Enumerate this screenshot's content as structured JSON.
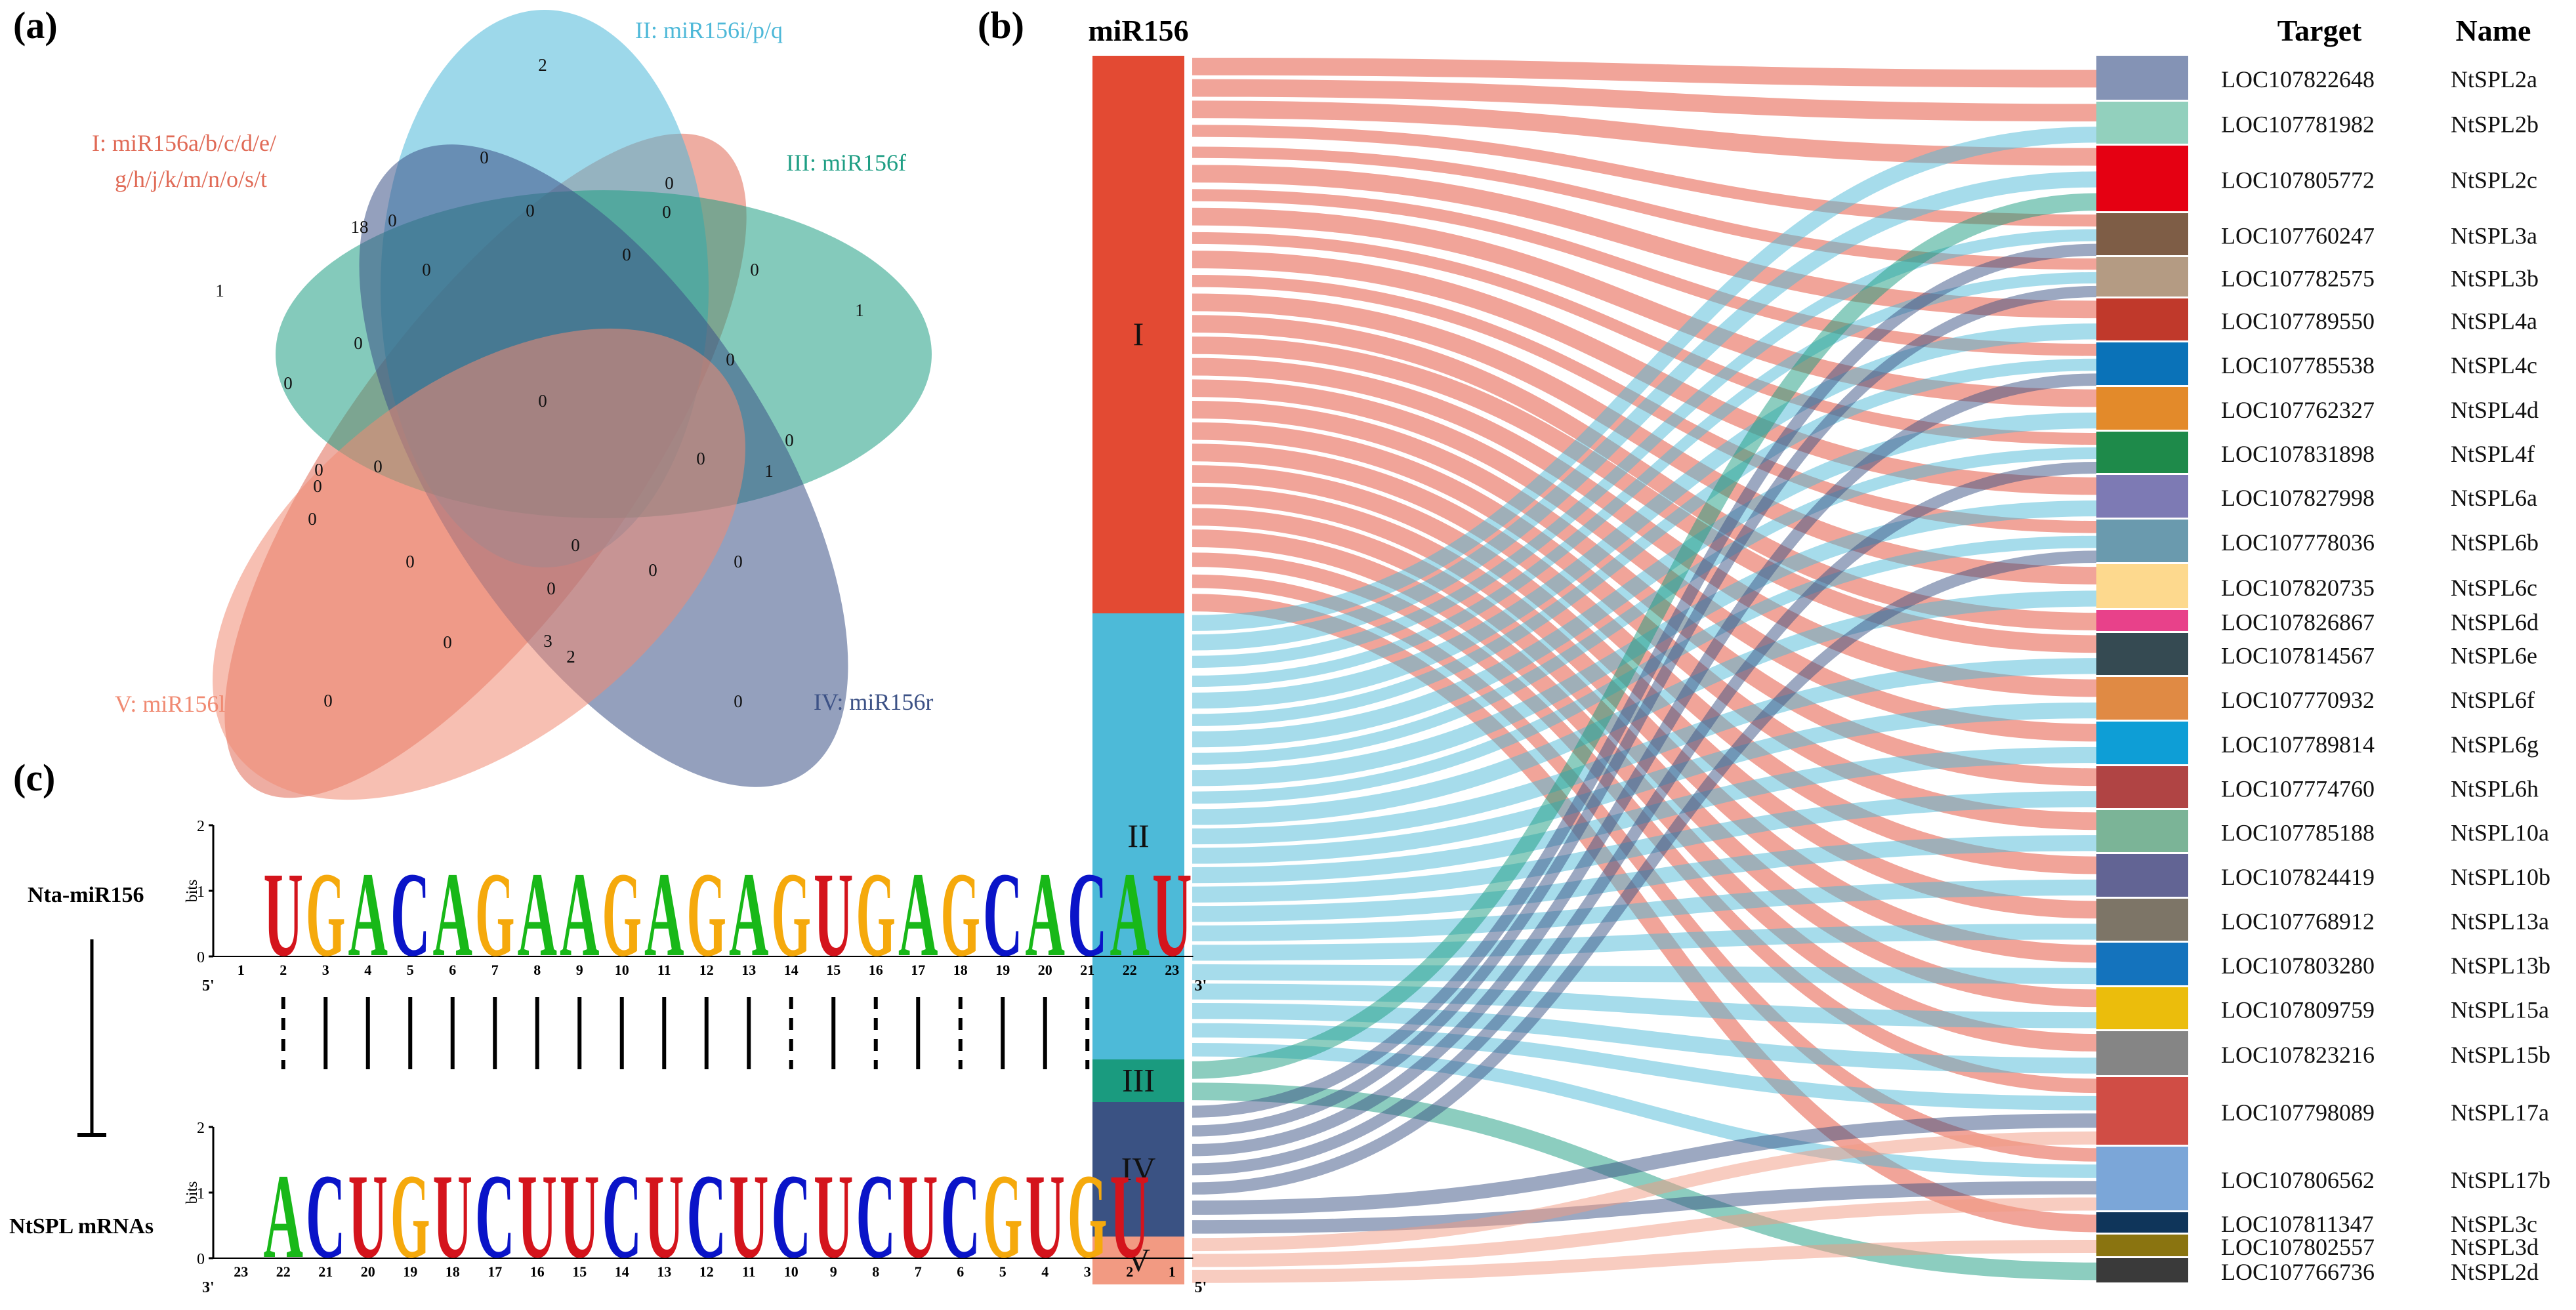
{
  "panels": {
    "a": "(a)",
    "b": "(b)",
    "c": "(c)"
  },
  "venn": {
    "sets": [
      {
        "label": "I: miR156a/b/c/d/e/",
        "label2": "g/h/j/k/m/n/o/s/t",
        "color": "#e06a56"
      },
      {
        "label": "II: miR156i/p/q",
        "color": "#4db8d8"
      },
      {
        "label": "III: miR156f",
        "color": "#1f9e84"
      },
      {
        "label": "IV: miR156r",
        "color": "#3d5286"
      },
      {
        "label": "V: miR156l",
        "color": "#f08a72"
      }
    ],
    "counts": [
      "2",
      "1",
      "1",
      "0",
      "0",
      "0",
      "18",
      "0",
      "0",
      "0",
      "0",
      "0",
      "0",
      "0",
      "0",
      "0",
      "0",
      "0",
      "0",
      "0",
      "0",
      "0",
      "0",
      "1",
      "0",
      "0",
      "0",
      "0",
      "0",
      "3",
      "2",
      "0",
      "0",
      "0",
      "0"
    ]
  },
  "sankey": {
    "title": "miR156",
    "target_header": "Target",
    "name_header": "Name",
    "sources": [
      {
        "label": "I",
        "color": "#e34a33"
      },
      {
        "label": "II",
        "color": "#4dbad8"
      },
      {
        "label": "III",
        "color": "#1a9b7f"
      },
      {
        "label": "IV",
        "color": "#3a5283"
      },
      {
        "label": "V",
        "color": "#f29a82"
      }
    ],
    "targets": [
      {
        "loc": "LOC107822648",
        "name": "NtSPL2a",
        "color": "#8493b5"
      },
      {
        "loc": "LOC107781982",
        "name": "NtSPL2b",
        "color": "#92d0bd"
      },
      {
        "loc": "LOC107805772",
        "name": "NtSPL2c",
        "color": "#e50012"
      },
      {
        "loc": "LOC107760247",
        "name": "NtSPL3a",
        "color": "#7e5d46"
      },
      {
        "loc": "LOC107782575",
        "name": "NtSPL3b",
        "color": "#b49b83"
      },
      {
        "loc": "LOC107789550",
        "name": "NtSPL4a",
        "color": "#c0392b"
      },
      {
        "loc": "LOC107785538",
        "name": "NtSPL4c",
        "color": "#0a72b8"
      },
      {
        "loc": "LOC107762327",
        "name": "NtSPL4d",
        "color": "#e38a2a"
      },
      {
        "loc": "LOC107831898",
        "name": "NtSPL4f",
        "color": "#1e8a4a"
      },
      {
        "loc": "LOC107827998",
        "name": "NtSPL6a",
        "color": "#7d7ab4"
      },
      {
        "loc": "LOC107778036",
        "name": "NtSPL6b",
        "color": "#6a9aae"
      },
      {
        "loc": "LOC107820735",
        "name": "NtSPL6c",
        "color": "#fdd98e"
      },
      {
        "loc": "LOC107826867",
        "name": "NtSPL6d",
        "color": "#e8418a"
      },
      {
        "loc": "LOC107814567",
        "name": "NtSPL6e",
        "color": "#354a52"
      },
      {
        "loc": "LOC107770932",
        "name": "NtSPL6f",
        "color": "#e08a44"
      },
      {
        "loc": "LOC107789814",
        "name": "NtSPL6g",
        "color": "#0e9ed6"
      },
      {
        "loc": "LOC107774760",
        "name": "NtSPL6h",
        "color": "#b04444"
      },
      {
        "loc": "LOC107785188",
        "name": "NtSPL10a",
        "color": "#7bb497"
      },
      {
        "loc": "LOC107824419",
        "name": "NtSPL10b",
        "color": "#626494"
      },
      {
        "loc": "LOC107768912",
        "name": "NtSPL13a",
        "color": "#7d7567"
      },
      {
        "loc": "LOC107803280",
        "name": "NtSPL13b",
        "color": "#1473bd"
      },
      {
        "loc": "LOC107809759",
        "name": "NtSPL15a",
        "color": "#ebbd0c"
      },
      {
        "loc": "LOC107823216",
        "name": "NtSPL15b",
        "color": "#858585"
      },
      {
        "loc": "LOC107798089",
        "name": "NtSPL17a",
        "color": "#d04d45"
      },
      {
        "loc": "LOC107806562",
        "name": "NtSPL17b",
        "color": "#7ba6d8"
      },
      {
        "loc": "LOC107811347",
        "name": "NtSPL3c",
        "color": "#0f355a"
      },
      {
        "loc": "LOC107802557",
        "name": "NtSPL3d",
        "color": "#8a7410"
      },
      {
        "loc": "LOC107766736",
        "name": "NtSPL2d",
        "color": "#3a3a3a"
      }
    ]
  },
  "logo": {
    "top_label": "Nta-miR156",
    "bottom_label": "NtSPL mRNAs",
    "axis_title": "bits",
    "tick_2": "2",
    "tick_1": "1",
    "tick_0": "0",
    "five_prime": "5'",
    "three_prime": "3'",
    "top_sequence": [
      "U",
      "G",
      "A",
      "C",
      "A",
      "G",
      "A",
      "A",
      "G",
      "A",
      "G",
      "A",
      "G",
      "U",
      "G",
      "A",
      "G",
      "C",
      "A",
      "C",
      "A",
      "U"
    ],
    "top_positions": [
      "1",
      "2",
      "3",
      "4",
      "5",
      "6",
      "7",
      "8",
      "9",
      "10",
      "11",
      "12",
      "13",
      "14",
      "15",
      "16",
      "17",
      "18",
      "19",
      "20",
      "21",
      "22",
      "23"
    ],
    "bottom_sequence": [
      "A",
      "C",
      "U",
      "G",
      "U",
      "C",
      "U",
      "U",
      "C",
      "U",
      "C",
      "U",
      "C",
      "U",
      "C",
      "U",
      "C",
      "G",
      "U",
      "G",
      "U"
    ],
    "bottom_positions": [
      "23",
      "22",
      "21",
      "20",
      "19",
      "18",
      "17",
      "16",
      "15",
      "14",
      "13",
      "12",
      "11",
      "10",
      "9",
      "8",
      "7",
      "6",
      "5",
      "4",
      "3",
      "2",
      "1"
    ],
    "letter_colors": {
      "A": "#18b818",
      "C": "#0a14c8",
      "G": "#f5a90c",
      "U": "#d4141c"
    }
  }
}
